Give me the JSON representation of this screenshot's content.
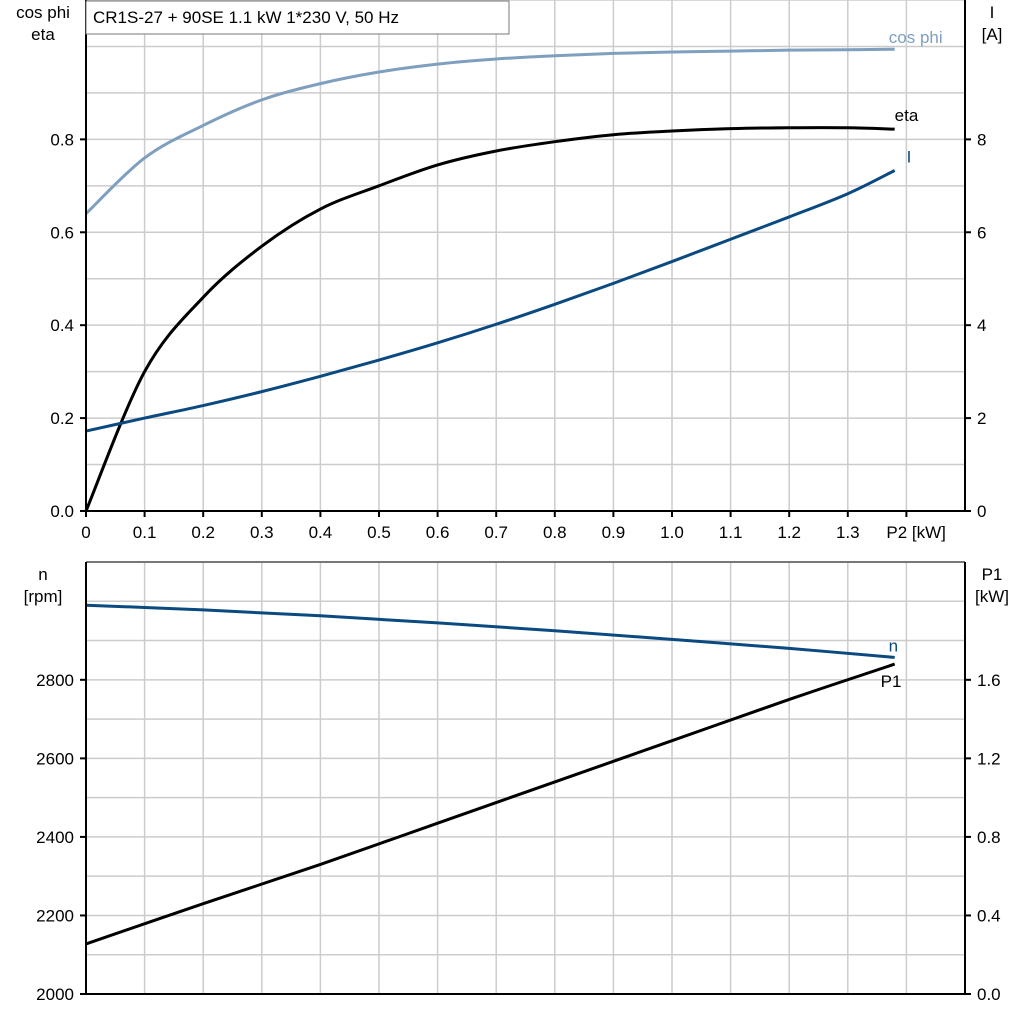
{
  "title": "CR1S-27 + 90SE   1.1 kW   1*230 V, 50 Hz",
  "colors": {
    "cos_phi": "#7f9fbf",
    "eta": "#000000",
    "I": "#0a4a80",
    "n": "#0a4a80",
    "P1": "#000000",
    "grid": "#cccccc"
  },
  "chart_data": [
    {
      "type": "line",
      "xlabel": "P2 [kW]",
      "ylabel_left": [
        "cos phi",
        "eta"
      ],
      "ylabel_right": [
        "I",
        "[A]"
      ],
      "xlim": [
        0,
        1.5
      ],
      "ylim_left": [
        0,
        1.1
      ],
      "ylim_right": [
        0,
        11
      ],
      "grid": true,
      "x_ticks": [
        "0",
        "0.1",
        "0.2",
        "0.3",
        "0.4",
        "0.5",
        "0.6",
        "0.7",
        "0.8",
        "0.9",
        "1.0",
        "1.1",
        "1.2",
        "1.3"
      ],
      "y_ticks_left": [
        "0.0",
        "0.2",
        "0.4",
        "0.6",
        "0.8"
      ],
      "y_ticks_right": [
        "0",
        "2",
        "4",
        "6",
        "8"
      ],
      "x": [
        0,
        0.1,
        0.2,
        0.3,
        0.4,
        0.5,
        0.6,
        0.7,
        0.8,
        0.9,
        1.0,
        1.1,
        1.2,
        1.3,
        1.38
      ],
      "series": [
        {
          "name": "cos phi",
          "axis": "left",
          "values": [
            0.64,
            0.76,
            0.83,
            0.885,
            0.92,
            0.945,
            0.962,
            0.973,
            0.98,
            0.985,
            0.988,
            0.99,
            0.992,
            0.993,
            0.994
          ]
        },
        {
          "name": "eta",
          "axis": "left",
          "values": [
            0,
            0.3,
            0.46,
            0.57,
            0.65,
            0.7,
            0.745,
            0.775,
            0.795,
            0.81,
            0.818,
            0.823,
            0.825,
            0.825,
            0.822
          ]
        },
        {
          "name": "I",
          "axis": "right",
          "values": [
            1.72,
            2.0,
            2.27,
            2.57,
            2.9,
            3.25,
            3.62,
            4.02,
            4.45,
            4.9,
            5.37,
            5.85,
            6.33,
            6.83,
            7.33
          ]
        }
      ]
    },
    {
      "type": "line",
      "xlim": [
        0,
        1.5
      ],
      "ylabel_left": [
        "n",
        "[rpm]"
      ],
      "ylabel_right": [
        "P1",
        "[kW]"
      ],
      "ylim_left": [
        2000,
        3100
      ],
      "ylim_right": [
        0,
        2.2
      ],
      "grid": true,
      "y_ticks_left": [
        "2000",
        "2200",
        "2400",
        "2600",
        "2800"
      ],
      "y_ticks_right": [
        "0.0",
        "0.4",
        "0.8",
        "1.2",
        "1.6"
      ],
      "x": [
        0,
        0.2,
        0.4,
        0.6,
        0.8,
        1.0,
        1.2,
        1.38
      ],
      "series": [
        {
          "name": "n",
          "axis": "left",
          "values": [
            2990,
            2978,
            2963,
            2945,
            2925,
            2903,
            2880,
            2857
          ]
        },
        {
          "name": "P1",
          "axis": "right",
          "values": [
            0.255,
            0.46,
            0.66,
            0.87,
            1.08,
            1.29,
            1.5,
            1.68
          ]
        }
      ]
    }
  ]
}
